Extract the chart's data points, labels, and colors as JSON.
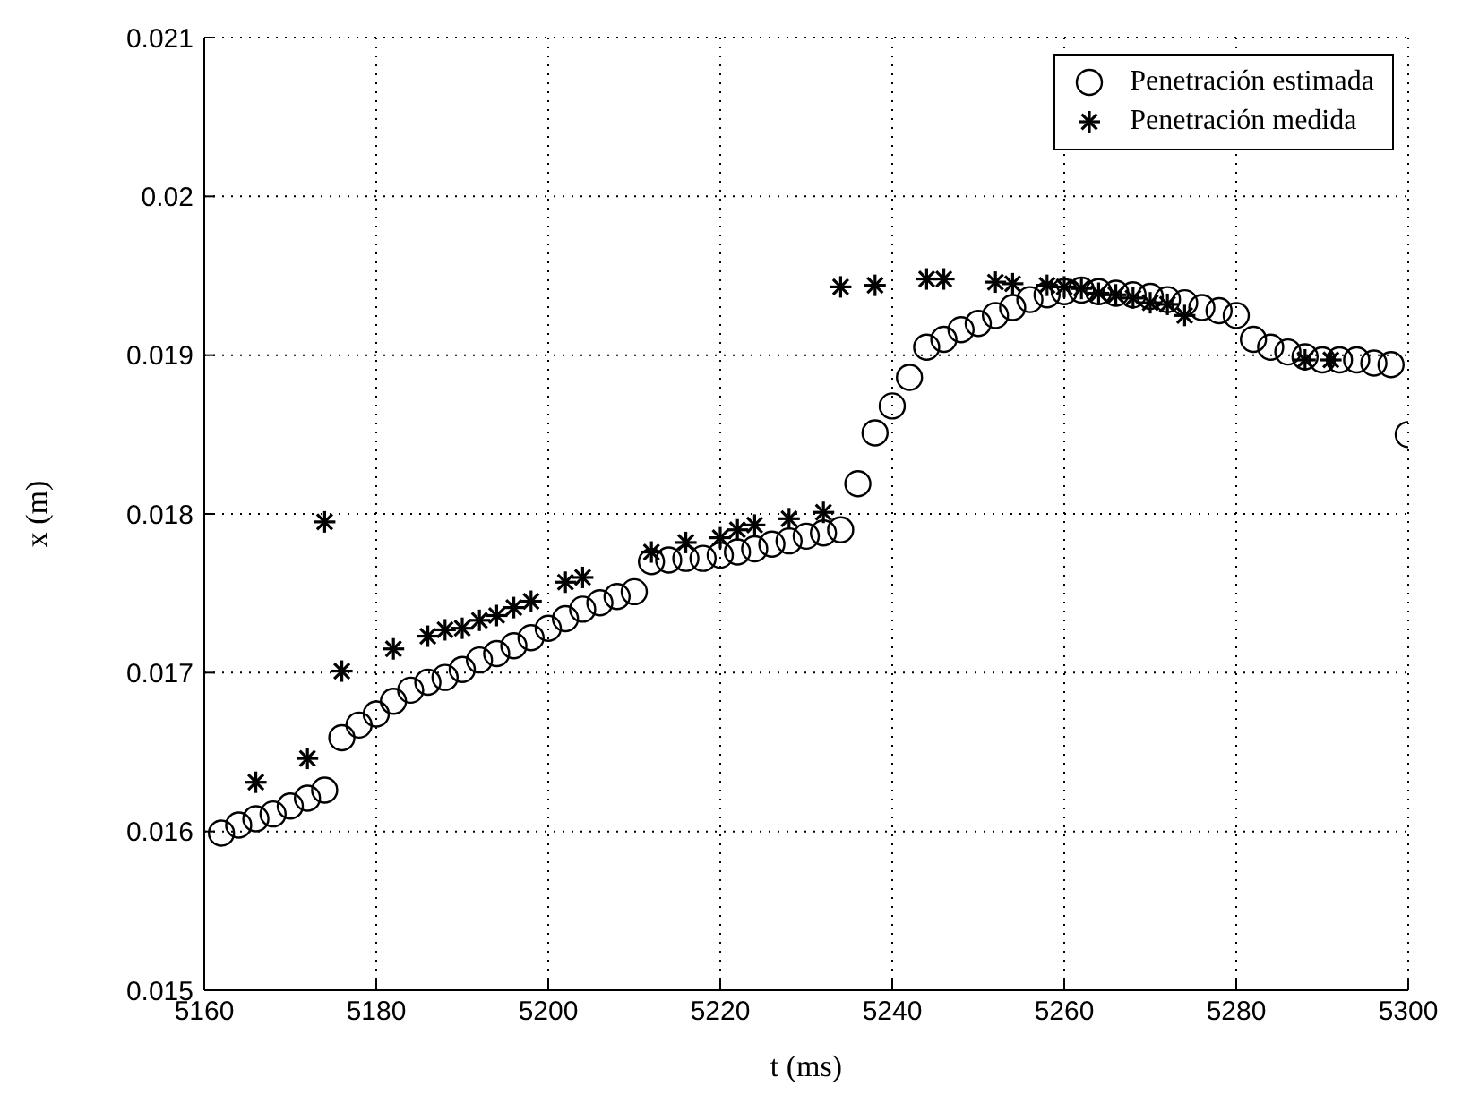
{
  "chart_data": {
    "type": "scatter",
    "xlabel": "t (ms)",
    "ylabel": "x (m)",
    "xlim": [
      5160,
      5300
    ],
    "xticks": [
      5160,
      5180,
      5200,
      5220,
      5240,
      5260,
      5280,
      5300
    ],
    "ylim": [
      0.015,
      0.021
    ],
    "yticks": [
      0.015,
      0.016,
      0.017,
      0.018,
      0.019,
      0.02,
      0.021
    ],
    "grid": true,
    "legend": "top right",
    "series": [
      {
        "name": "Penetración estimada",
        "color": "#000000",
        "marker": "circle",
        "x": [
          5162,
          5164,
          5166,
          5168,
          5170,
          5172,
          5174,
          5176,
          5178,
          5180,
          5182,
          5184,
          5186,
          5188,
          5190,
          5192,
          5194,
          5196,
          5198,
          5200,
          5202,
          5204,
          5206,
          5208,
          5210,
          5212,
          5214,
          5216,
          5218,
          5220,
          5222,
          5224,
          5226,
          5228,
          5230,
          5232,
          5234,
          5236,
          5238,
          5240,
          5242,
          5244,
          5246,
          5248,
          5250,
          5252,
          5254,
          5256,
          5258,
          5260,
          5262,
          5264,
          5266,
          5268,
          5270,
          5272,
          5274,
          5276,
          5278,
          5280,
          5282,
          5284,
          5286,
          5288,
          5290,
          5292,
          5294,
          5296,
          5298,
          5300
        ],
        "values": [
          0.01599,
          0.01604,
          0.01608,
          0.01611,
          0.01616,
          0.01621,
          0.01626,
          0.01659,
          0.01667,
          0.01674,
          0.01682,
          0.01689,
          0.01694,
          0.01697,
          0.01702,
          0.01708,
          0.01712,
          0.01717,
          0.01722,
          0.01728,
          0.01734,
          0.0174,
          0.01744,
          0.01748,
          0.01751,
          0.0177,
          0.01771,
          0.01772,
          0.01772,
          0.01774,
          0.01776,
          0.01778,
          0.01781,
          0.01783,
          0.01786,
          0.01788,
          0.0179,
          0.01819,
          0.01851,
          0.01868,
          0.01886,
          0.01905,
          0.0191,
          0.01916,
          0.0192,
          0.01925,
          0.0193,
          0.01935,
          0.01938,
          0.0194,
          0.01941,
          0.0194,
          0.01939,
          0.01938,
          0.01937,
          0.01935,
          0.01933,
          0.0193,
          0.01928,
          0.01925,
          0.0191,
          0.01905,
          0.01902,
          0.01899,
          0.01897,
          0.01897,
          0.01897,
          0.01895,
          0.01894,
          0.0185
        ]
      },
      {
        "name": "Penetración medida",
        "color": "#000000",
        "marker": "cross",
        "x": [
          5166,
          5172,
          5174,
          5176,
          5182,
          5186,
          5188,
          5190,
          5192,
          5194,
          5196,
          5198,
          5202,
          5204,
          5212,
          5216,
          5220,
          5222,
          5224,
          5228,
          5232,
          5234,
          5238,
          5244,
          5246,
          5252,
          5254,
          5258,
          5260,
          5262,
          5264,
          5266,
          5268,
          5270,
          5272,
          5274,
          5288,
          5291
        ],
        "values": [
          0.01631,
          0.01646,
          0.01795,
          0.01701,
          0.01715,
          0.01723,
          0.01727,
          0.01728,
          0.01733,
          0.01736,
          0.01741,
          0.01745,
          0.01757,
          0.0176,
          0.01776,
          0.01782,
          0.01785,
          0.0179,
          0.01793,
          0.01797,
          0.01801,
          0.01943,
          0.01944,
          0.01948,
          0.01948,
          0.01946,
          0.01945,
          0.01944,
          0.01943,
          0.01942,
          0.01939,
          0.01938,
          0.01936,
          0.01933,
          0.01932,
          0.01925,
          0.01897,
          0.01897
        ]
      }
    ]
  }
}
